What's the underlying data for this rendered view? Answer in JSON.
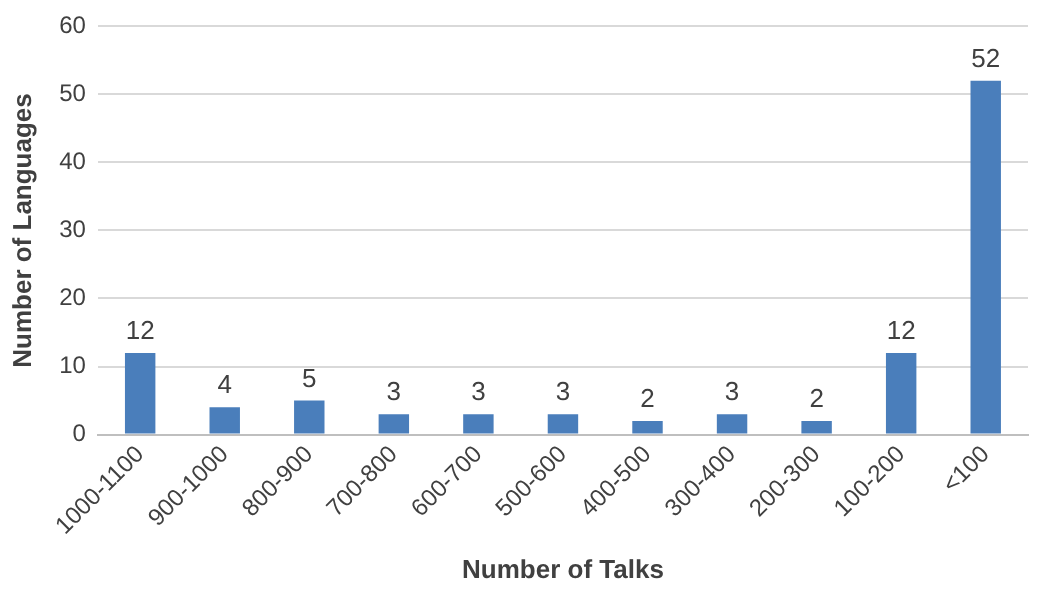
{
  "chart_data": {
    "type": "bar",
    "xlabel": "Number of Talks",
    "ylabel": "Number of Languages",
    "categories": [
      "1000-1100",
      "900-1000",
      "800-900",
      "700-800",
      "600-700",
      "500-600",
      "400-500",
      "300-400",
      "200-300",
      "100-200",
      "<100"
    ],
    "values": [
      12,
      4,
      5,
      3,
      3,
      3,
      2,
      3,
      2,
      12,
      52
    ],
    "color": "#4a7ebb",
    "ylim": [
      0,
      60
    ],
    "yticks": [
      0,
      10,
      20,
      30,
      40,
      50,
      60
    ],
    "grid": "y",
    "data_labels": true
  }
}
